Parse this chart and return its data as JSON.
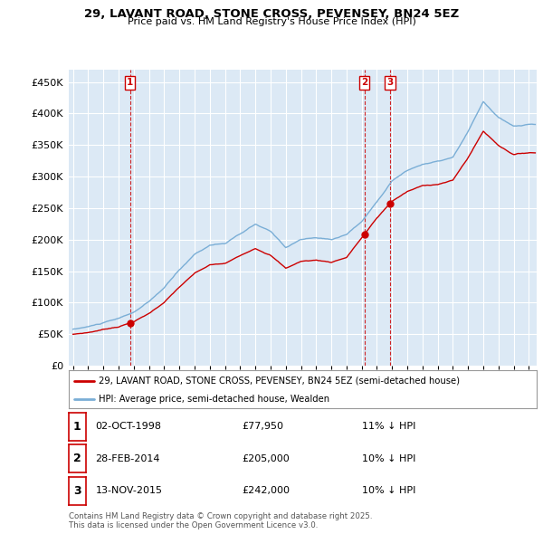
{
  "title": "29, LAVANT ROAD, STONE CROSS, PEVENSEY, BN24 5EZ",
  "subtitle": "Price paid vs. HM Land Registry's House Price Index (HPI)",
  "sale_label": "29, LAVANT ROAD, STONE CROSS, PEVENSEY, BN24 5EZ (semi-detached house)",
  "hpi_label": "HPI: Average price, semi-detached house, Wealden",
  "sale_color": "#cc0000",
  "hpi_color": "#7aaed6",
  "vline_color": "#cc0000",
  "transactions": [
    {
      "num": 1,
      "date_dec": 1998.75,
      "price": 77950,
      "label": "1"
    },
    {
      "num": 2,
      "date_dec": 2014.17,
      "price": 205000,
      "label": "2"
    },
    {
      "num": 3,
      "date_dec": 2015.87,
      "price": 242000,
      "label": "3"
    }
  ],
  "table_rows": [
    {
      "num": "1",
      "date": "02-OCT-1998",
      "price": "£77,950",
      "note": "11% ↓ HPI"
    },
    {
      "num": "2",
      "date": "28-FEB-2014",
      "price": "£205,000",
      "note": "10% ↓ HPI"
    },
    {
      "num": "3",
      "date": "13-NOV-2015",
      "price": "£242,000",
      "note": "10% ↓ HPI"
    }
  ],
  "footer": "Contains HM Land Registry data © Crown copyright and database right 2025.\nThis data is licensed under the Open Government Licence v3.0.",
  "ylim": [
    0,
    470000
  ],
  "yticks": [
    0,
    50000,
    100000,
    150000,
    200000,
    250000,
    300000,
    350000,
    400000,
    450000
  ],
  "xlim_start": 1994.7,
  "xlim_end": 2025.5,
  "hpi_anchors": {
    "1995.0": 58000,
    "1996.0": 62000,
    "1997.0": 68000,
    "1998.0": 74000,
    "1999.0": 84000,
    "2000.0": 100000,
    "2001.0": 122000,
    "2002.0": 150000,
    "2003.0": 175000,
    "2004.0": 190000,
    "2005.0": 193000,
    "2006.0": 207000,
    "2007.0": 222000,
    "2008.0": 210000,
    "2009.0": 185000,
    "2010.0": 198000,
    "2011.0": 200000,
    "2012.0": 197000,
    "2013.0": 206000,
    "2014.0": 226000,
    "2015.0": 258000,
    "2016.0": 292000,
    "2017.0": 308000,
    "2018.0": 318000,
    "2019.0": 322000,
    "2020.0": 328000,
    "2021.0": 368000,
    "2022.0": 415000,
    "2023.0": 390000,
    "2024.0": 375000,
    "2025.0": 378000
  },
  "sale_anchors": {
    "1995.0": 50000,
    "1996.0": 53000,
    "1997.0": 58000,
    "1998.0": 63000,
    "1999.0": 71000,
    "2000.0": 84000,
    "2001.0": 102000,
    "2002.0": 126000,
    "2003.0": 147000,
    "2004.0": 160000,
    "2005.0": 162000,
    "2006.0": 174000,
    "2007.0": 187000,
    "2008.0": 177000,
    "2009.0": 156000,
    "2010.0": 167000,
    "2011.0": 169000,
    "2012.0": 166000,
    "2013.0": 174000,
    "2014.0": 205000,
    "2015.0": 236000,
    "2016.0": 263000,
    "2017.0": 278000,
    "2018.0": 287000,
    "2019.0": 290000,
    "2020.0": 296000,
    "2021.0": 332000,
    "2022.0": 374000,
    "2023.0": 352000,
    "2024.0": 338000,
    "2025.0": 341000
  }
}
